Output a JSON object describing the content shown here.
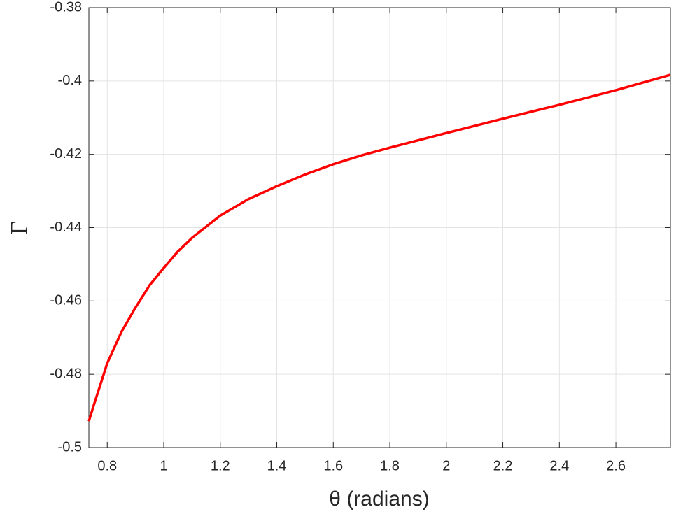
{
  "chart_data": {
    "type": "line",
    "xlabel": "θ (radians)",
    "ylabel": "Γ",
    "x": [
      0.735,
      0.75,
      0.8,
      0.85,
      0.9,
      0.95,
      1.0,
      1.05,
      1.1,
      1.2,
      1.3,
      1.4,
      1.5,
      1.6,
      1.7,
      1.8,
      2.0,
      2.2,
      2.4,
      2.6,
      2.793
    ],
    "series": [
      {
        "name": "Γ",
        "color": "#ff0000",
        "values": [
          -0.4928,
          -0.489,
          -0.477,
          -0.4685,
          -0.4618,
          -0.4557,
          -0.451,
          -0.4465,
          -0.4428,
          -0.4367,
          -0.4322,
          -0.4287,
          -0.4255,
          -0.4227,
          -0.4203,
          -0.4182,
          -0.4142,
          -0.4103,
          -0.4065,
          -0.4025,
          -0.3983
        ]
      }
    ],
    "xlim": [
      0.735,
      2.793
    ],
    "ylim": [
      -0.5,
      -0.38
    ],
    "xticks": [
      0.8,
      1,
      1.2,
      1.4,
      1.6,
      1.8,
      2,
      2.2,
      2.4,
      2.6
    ],
    "yticks": [
      -0.5,
      -0.48,
      -0.46,
      -0.44,
      -0.42,
      -0.4,
      -0.38
    ],
    "grid": true
  }
}
